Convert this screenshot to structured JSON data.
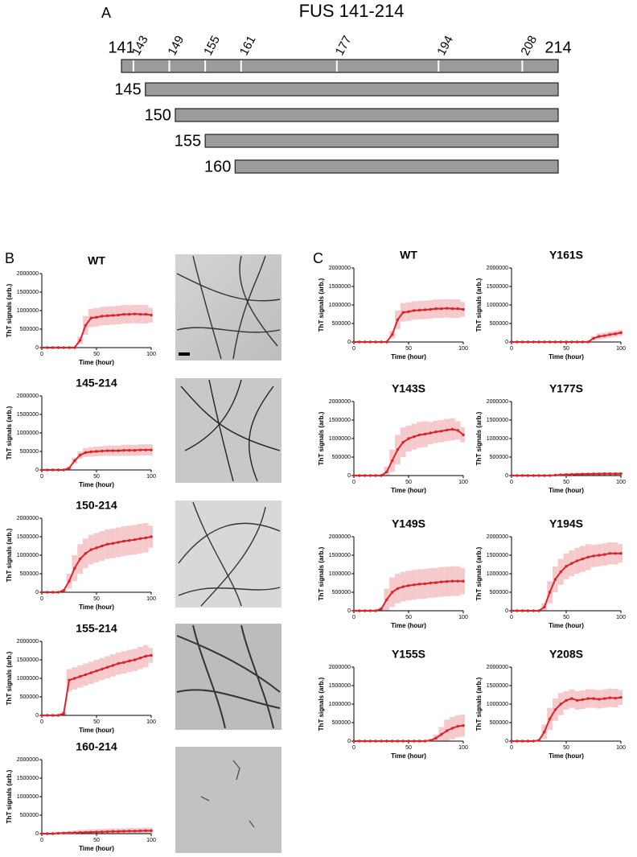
{
  "panel_labels": [
    "A",
    "B",
    "C"
  ],
  "diagram": {
    "title": "FUS 141-214",
    "ticks": [
      141,
      143,
      149,
      155,
      161,
      177,
      194,
      208,
      214
    ],
    "constructs": [
      145,
      150,
      155,
      160
    ]
  },
  "chart_data": [
    {
      "type": "line",
      "title": "WT",
      "xlabel": "Time (hour)",
      "ylabel": "ThT signals (arb.)",
      "color": "#d7262b",
      "band_color": "#f6c9cc",
      "xlim": [
        0,
        100
      ],
      "ylim": [
        0,
        2000000
      ],
      "xticks": [
        0,
        50,
        100
      ],
      "yticks": [
        0,
        500000,
        1000000,
        1500000,
        2000000
      ],
      "x": [
        0,
        5,
        10,
        15,
        20,
        25,
        30,
        35,
        40,
        45,
        50,
        55,
        60,
        65,
        70,
        75,
        80,
        85,
        90,
        95,
        100
      ],
      "values": [
        0,
        0,
        0,
        0,
        0,
        0,
        0,
        200000,
        600000,
        800000,
        820000,
        850000,
        860000,
        870000,
        880000,
        900000,
        900000,
        910000,
        900000,
        900000,
        880000
      ],
      "errors": [
        0,
        0,
        0,
        0,
        0,
        0,
        0,
        100000,
        250000,
        250000,
        250000,
        250000,
        250000,
        250000,
        250000,
        250000,
        250000,
        250000,
        250000,
        250000,
        200000
      ]
    },
    {
      "type": "line",
      "title": "145-214",
      "xlabel": "Time (hour)",
      "ylabel": "ThT signals (arb.)",
      "color": "#d7262b",
      "band_color": "#f6c9cc",
      "xlim": [
        0,
        100
      ],
      "ylim": [
        0,
        2000000
      ],
      "xticks": [
        0,
        50,
        100
      ],
      "yticks": [
        0,
        500000,
        1000000,
        1500000,
        2000000
      ],
      "x": [
        0,
        5,
        10,
        15,
        20,
        25,
        30,
        35,
        40,
        45,
        50,
        55,
        60,
        65,
        70,
        75,
        80,
        85,
        90,
        95,
        100
      ],
      "values": [
        0,
        0,
        0,
        0,
        0,
        50000,
        250000,
        400000,
        470000,
        490000,
        500000,
        510000,
        520000,
        520000,
        520000,
        530000,
        530000,
        530000,
        540000,
        540000,
        540000
      ],
      "errors": [
        0,
        0,
        0,
        0,
        0,
        30000,
        80000,
        100000,
        120000,
        130000,
        130000,
        130000,
        140000,
        140000,
        140000,
        150000,
        150000,
        150000,
        150000,
        150000,
        150000
      ]
    },
    {
      "type": "line",
      "title": "150-214",
      "xlabel": "Time (hour)",
      "ylabel": "ThT signals (arb.)",
      "color": "#d7262b",
      "band_color": "#f6c9cc",
      "xlim": [
        0,
        100
      ],
      "ylim": [
        0,
        2000000
      ],
      "xticks": [
        0,
        50,
        100
      ],
      "yticks": [
        0,
        500000,
        1000000,
        1500000,
        2000000
      ],
      "x": [
        0,
        5,
        10,
        15,
        20,
        25,
        30,
        35,
        40,
        45,
        50,
        55,
        60,
        65,
        70,
        75,
        80,
        85,
        90,
        95,
        100
      ],
      "values": [
        0,
        0,
        0,
        0,
        50000,
        300000,
        650000,
        900000,
        1050000,
        1150000,
        1200000,
        1250000,
        1300000,
        1320000,
        1350000,
        1380000,
        1400000,
        1420000,
        1450000,
        1470000,
        1500000
      ],
      "errors": [
        0,
        0,
        0,
        0,
        30000,
        200000,
        350000,
        400000,
        400000,
        400000,
        400000,
        400000,
        400000,
        400000,
        400000,
        400000,
        400000,
        400000,
        400000,
        400000,
        300000
      ]
    },
    {
      "type": "line",
      "title": "155-214",
      "xlabel": "Time (hour)",
      "ylabel": "ThT signals (arb.)",
      "color": "#d7262b",
      "band_color": "#f6c9cc",
      "xlim": [
        0,
        100
      ],
      "ylim": [
        0,
        2000000
      ],
      "xticks": [
        0,
        50,
        100
      ],
      "yticks": [
        0,
        500000,
        1000000,
        1500000,
        2000000
      ],
      "x": [
        0,
        5,
        10,
        15,
        20,
        25,
        30,
        35,
        40,
        45,
        50,
        55,
        60,
        65,
        70,
        75,
        80,
        85,
        90,
        95,
        100
      ],
      "values": [
        0,
        0,
        0,
        0,
        50000,
        950000,
        1000000,
        1050000,
        1100000,
        1150000,
        1200000,
        1250000,
        1300000,
        1350000,
        1400000,
        1430000,
        1470000,
        1500000,
        1550000,
        1600000,
        1620000
      ],
      "errors": [
        0,
        0,
        0,
        0,
        50000,
        300000,
        300000,
        300000,
        300000,
        300000,
        300000,
        300000,
        300000,
        300000,
        300000,
        300000,
        300000,
        300000,
        300000,
        300000,
        200000
      ]
    },
    {
      "type": "line",
      "title": "160-214",
      "xlabel": "Time (hour)",
      "ylabel": "ThT signals (arb.)",
      "color": "#d7262b",
      "band_color": "#f6c9cc",
      "xlim": [
        0,
        100
      ],
      "ylim": [
        0,
        2000000
      ],
      "xticks": [
        0,
        50,
        100
      ],
      "yticks": [
        0,
        500000,
        1000000,
        1500000,
        2000000
      ],
      "x": [
        0,
        5,
        10,
        15,
        20,
        25,
        30,
        35,
        40,
        45,
        50,
        55,
        60,
        65,
        70,
        75,
        80,
        85,
        90,
        95,
        100
      ],
      "values": [
        0,
        0,
        0,
        10000,
        15000,
        20000,
        25000,
        30000,
        35000,
        40000,
        45000,
        50000,
        55000,
        60000,
        60000,
        65000,
        70000,
        70000,
        75000,
        80000,
        80000
      ],
      "errors": [
        0,
        10000,
        20000,
        30000,
        40000,
        50000,
        60000,
        70000,
        70000,
        80000,
        80000,
        80000,
        80000,
        80000,
        80000,
        80000,
        80000,
        80000,
        80000,
        80000,
        80000
      ]
    },
    {
      "type": "line",
      "title": "WT",
      "xlabel": "Time (hour)",
      "ylabel": "ThT signals (arb.)",
      "color": "#d7262b",
      "band_color": "#f6c9cc",
      "xlim": [
        0,
        100
      ],
      "ylim": [
        0,
        2000000
      ],
      "xticks": [
        0,
        50,
        100
      ],
      "yticks": [
        0,
        500000,
        1000000,
        1500000,
        2000000
      ],
      "x": [
        0,
        5,
        10,
        15,
        20,
        25,
        30,
        35,
        40,
        45,
        50,
        55,
        60,
        65,
        70,
        75,
        80,
        85,
        90,
        95,
        100
      ],
      "values": [
        0,
        0,
        0,
        0,
        0,
        0,
        0,
        200000,
        600000,
        800000,
        820000,
        850000,
        860000,
        870000,
        880000,
        900000,
        900000,
        910000,
        900000,
        900000,
        880000
      ],
      "errors": [
        0,
        0,
        0,
        0,
        0,
        0,
        0,
        100000,
        250000,
        250000,
        250000,
        250000,
        250000,
        250000,
        250000,
        250000,
        250000,
        250000,
        250000,
        250000,
        200000
      ]
    },
    {
      "type": "line",
      "title": "Y161S",
      "xlabel": "Time (hour)",
      "ylabel": "ThT signals (arb.)",
      "color": "#d7262b",
      "band_color": "#f6c9cc",
      "xlim": [
        0,
        100
      ],
      "ylim": [
        0,
        2000000
      ],
      "xticks": [
        0,
        50,
        100
      ],
      "yticks": [
        0,
        500000,
        1000000,
        1500000,
        2000000
      ],
      "x": [
        0,
        5,
        10,
        15,
        20,
        25,
        30,
        35,
        40,
        45,
        50,
        55,
        60,
        65,
        70,
        75,
        80,
        85,
        90,
        95,
        100
      ],
      "values": [
        0,
        0,
        0,
        0,
        0,
        0,
        0,
        0,
        0,
        0,
        0,
        0,
        0,
        0,
        0,
        100000,
        150000,
        170000,
        200000,
        220000,
        250000
      ],
      "errors": [
        0,
        0,
        0,
        0,
        0,
        0,
        0,
        0,
        0,
        0,
        0,
        0,
        0,
        0,
        0,
        50000,
        80000,
        80000,
        80000,
        80000,
        80000
      ]
    },
    {
      "type": "line",
      "title": "Y143S",
      "xlabel": "Time (hour)",
      "ylabel": "ThT signals (arb.)",
      "color": "#d7262b",
      "band_color": "#f6c9cc",
      "xlim": [
        0,
        100
      ],
      "ylim": [
        0,
        2000000
      ],
      "xticks": [
        0,
        50,
        100
      ],
      "yticks": [
        0,
        500000,
        1000000,
        1500000,
        2000000
      ],
      "x": [
        0,
        5,
        10,
        15,
        20,
        25,
        30,
        35,
        40,
        45,
        50,
        55,
        60,
        65,
        70,
        75,
        80,
        85,
        90,
        95,
        100
      ],
      "values": [
        0,
        0,
        0,
        0,
        0,
        0,
        100000,
        400000,
        700000,
        900000,
        1000000,
        1050000,
        1100000,
        1120000,
        1150000,
        1180000,
        1200000,
        1230000,
        1250000,
        1220000,
        1100000
      ],
      "errors": [
        0,
        0,
        0,
        0,
        0,
        0,
        150000,
        300000,
        400000,
        400000,
        350000,
        350000,
        350000,
        350000,
        300000,
        300000,
        300000,
        300000,
        300000,
        250000,
        200000
      ]
    },
    {
      "type": "line",
      "title": "Y177S",
      "xlabel": "Time (hour)",
      "ylabel": "ThT signals (arb.)",
      "color": "#d7262b",
      "band_color": "#f6c9cc",
      "xlim": [
        0,
        100
      ],
      "ylim": [
        0,
        2000000
      ],
      "xticks": [
        0,
        50,
        100
      ],
      "yticks": [
        0,
        500000,
        1000000,
        1500000,
        2000000
      ],
      "x": [
        0,
        5,
        10,
        15,
        20,
        25,
        30,
        35,
        40,
        45,
        50,
        55,
        60,
        65,
        70,
        75,
        80,
        85,
        90,
        95,
        100
      ],
      "values": [
        0,
        0,
        0,
        0,
        0,
        0,
        0,
        0,
        10000,
        20000,
        25000,
        30000,
        35000,
        40000,
        40000,
        45000,
        45000,
        50000,
        50000,
        50000,
        50000
      ],
      "errors": [
        0,
        0,
        0,
        0,
        0,
        0,
        0,
        10000,
        20000,
        30000,
        40000,
        40000,
        40000,
        40000,
        40000,
        40000,
        40000,
        40000,
        40000,
        40000,
        40000
      ]
    },
    {
      "type": "line",
      "title": "Y149S",
      "xlabel": "Time (hour)",
      "ylabel": "ThT signals (arb.)",
      "color": "#d7262b",
      "band_color": "#f6c9cc",
      "xlim": [
        0,
        100
      ],
      "ylim": [
        0,
        2000000
      ],
      "xticks": [
        0,
        50,
        100
      ],
      "yticks": [
        0,
        500000,
        1000000,
        1500000,
        2000000
      ],
      "x": [
        0,
        5,
        10,
        15,
        20,
        25,
        30,
        35,
        40,
        45,
        50,
        55,
        60,
        65,
        70,
        75,
        80,
        85,
        90,
        95,
        100
      ],
      "values": [
        0,
        0,
        0,
        0,
        0,
        50000,
        300000,
        500000,
        600000,
        650000,
        680000,
        700000,
        720000,
        730000,
        750000,
        760000,
        780000,
        790000,
        800000,
        800000,
        800000
      ],
      "errors": [
        0,
        0,
        0,
        0,
        0,
        50000,
        300000,
        400000,
        400000,
        400000,
        400000,
        400000,
        400000,
        400000,
        400000,
        400000,
        400000,
        400000,
        400000,
        400000,
        350000
      ]
    },
    {
      "type": "line",
      "title": "Y194S",
      "xlabel": "Time (hour)",
      "ylabel": "ThT signals (arb.)",
      "color": "#d7262b",
      "band_color": "#f6c9cc",
      "xlim": [
        0,
        100
      ],
      "ylim": [
        0,
        2000000
      ],
      "xticks": [
        0,
        50,
        100
      ],
      "yticks": [
        0,
        500000,
        1000000,
        1500000,
        2000000
      ],
      "x": [
        0,
        5,
        10,
        15,
        20,
        25,
        30,
        35,
        40,
        45,
        50,
        55,
        60,
        65,
        70,
        75,
        80,
        85,
        90,
        95,
        100
      ],
      "values": [
        0,
        0,
        0,
        0,
        0,
        0,
        100000,
        500000,
        850000,
        1050000,
        1200000,
        1280000,
        1350000,
        1400000,
        1450000,
        1480000,
        1500000,
        1520000,
        1550000,
        1550000,
        1550000
      ],
      "errors": [
        0,
        0,
        0,
        0,
        0,
        0,
        100000,
        300000,
        350000,
        350000,
        350000,
        350000,
        350000,
        350000,
        350000,
        300000,
        300000,
        300000,
        300000,
        300000,
        250000
      ]
    },
    {
      "type": "line",
      "title": "Y155S",
      "xlabel": "Time (hour)",
      "ylabel": "ThT signals (arb.)",
      "color": "#d7262b",
      "band_color": "#f6c9cc",
      "xlim": [
        0,
        100
      ],
      "ylim": [
        0,
        2000000
      ],
      "xticks": [
        0,
        50,
        100
      ],
      "yticks": [
        0,
        500000,
        1000000,
        1500000,
        2000000
      ],
      "x": [
        0,
        5,
        10,
        15,
        20,
        25,
        30,
        35,
        40,
        45,
        50,
        55,
        60,
        65,
        70,
        75,
        80,
        85,
        90,
        95,
        100
      ],
      "values": [
        0,
        0,
        0,
        0,
        0,
        0,
        0,
        0,
        0,
        0,
        0,
        0,
        0,
        0,
        20000,
        80000,
        180000,
        280000,
        350000,
        400000,
        420000
      ],
      "errors": [
        0,
        0,
        0,
        0,
        0,
        0,
        0,
        0,
        0,
        0,
        0,
        0,
        0,
        0,
        30000,
        100000,
        200000,
        300000,
        300000,
        300000,
        300000
      ]
    },
    {
      "type": "line",
      "title": "Y208S",
      "xlabel": "Time (hour)",
      "ylabel": "ThT signals (arb.)",
      "color": "#d7262b",
      "band_color": "#f6c9cc",
      "xlim": [
        0,
        100
      ],
      "ylim": [
        0,
        2000000
      ],
      "xticks": [
        0,
        50,
        100
      ],
      "yticks": [
        0,
        500000,
        1000000,
        1500000,
        2000000
      ],
      "x": [
        0,
        5,
        10,
        15,
        20,
        25,
        30,
        35,
        40,
        45,
        50,
        55,
        60,
        65,
        70,
        75,
        80,
        85,
        90,
        95,
        100
      ],
      "values": [
        0,
        0,
        0,
        0,
        0,
        20000,
        250000,
        600000,
        850000,
        1000000,
        1100000,
        1150000,
        1100000,
        1120000,
        1150000,
        1150000,
        1130000,
        1150000,
        1170000,
        1160000,
        1180000
      ],
      "errors": [
        0,
        0,
        0,
        0,
        0,
        20000,
        200000,
        300000,
        300000,
        300000,
        250000,
        250000,
        250000,
        250000,
        250000,
        250000,
        250000,
        250000,
        250000,
        250000,
        200000
      ]
    }
  ]
}
